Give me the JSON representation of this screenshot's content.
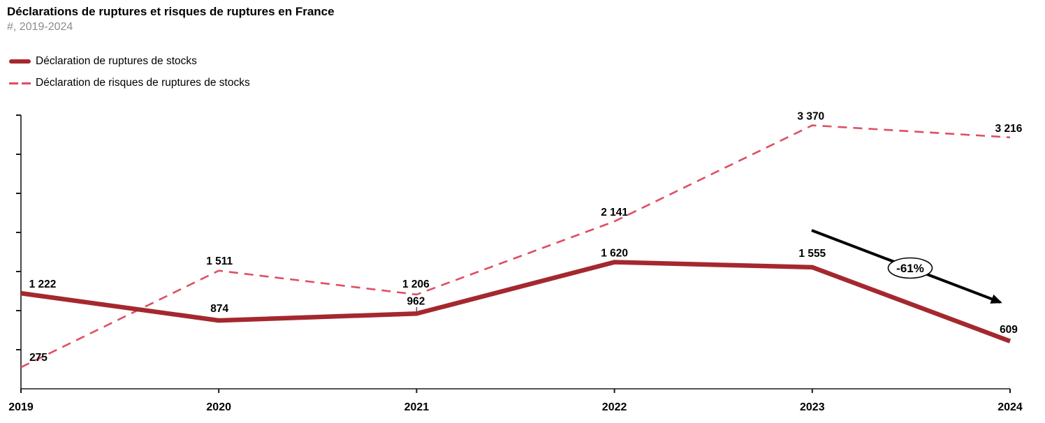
{
  "chart_data": {
    "type": "line",
    "title": "Déclarations de ruptures et risques de ruptures en France",
    "subtitle": "#, 2019-2024",
    "categories": [
      "2019",
      "2020",
      "2021",
      "2022",
      "2023",
      "2024"
    ],
    "series": [
      {
        "name": "Déclaration de ruptures de stocks",
        "line_style": "solid",
        "color": "#A4282E",
        "values": [
          1222,
          874,
          962,
          1620,
          1555,
          609
        ],
        "labels": [
          "1 222",
          "874",
          "962",
          "1 620",
          "1 555",
          "609"
        ]
      },
      {
        "name": "Déclaration de risques de ruptures de stocks",
        "line_style": "dashed",
        "color": "#DD4F63",
        "values": [
          275,
          1511,
          1206,
          2141,
          3370,
          3216
        ],
        "labels": [
          "275",
          "1 511",
          "1 206",
          "2 141",
          "3 370",
          "3 216"
        ]
      }
    ],
    "xlabel": "",
    "ylabel": "",
    "ylim": [
      0,
      3500
    ],
    "y_tick_interval": 500,
    "y_tick_labels_visible": false,
    "x_axis_labels_visible": true,
    "grid": false,
    "legend_position": "top-left",
    "axis_color": "#1a1a1a",
    "label_color": "#000000",
    "annotation": {
      "label": "-61%",
      "shape": "ellipse-on-arrow",
      "from_category": "2023",
      "to_category": "2024",
      "color": "#000000"
    }
  }
}
